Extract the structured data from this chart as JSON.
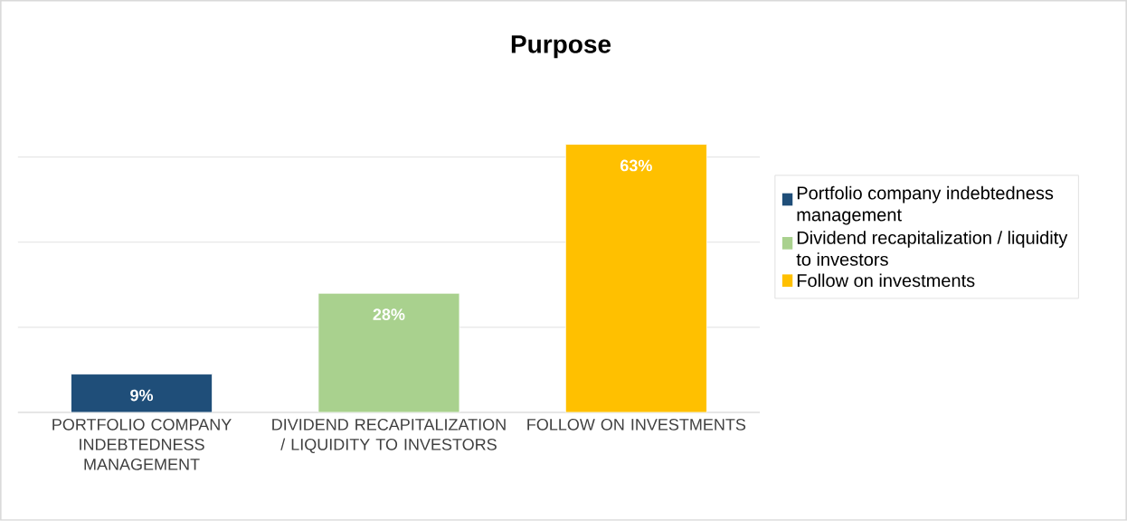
{
  "chart_data": {
    "type": "bar",
    "title": "Purpose",
    "categories": [
      "PORTFOLIO COMPANY INDEBTEDNESS MANAGEMENT",
      "DIVIDEND RECAPITALIZATION / LIQUIDITY TO INVESTORS",
      "FOLLOW ON INVESTMENTS"
    ],
    "series": [
      {
        "name": "Portfolio company indebtedness management",
        "color": "#1f4e79",
        "values": [
          9,
          null,
          null
        ],
        "value_labels": [
          "9%",
          null,
          null
        ]
      },
      {
        "name": "Dividend recapitalization / liquidity to investors",
        "color": "#a9d18e",
        "values": [
          null,
          28,
          null
        ],
        "value_labels": [
          null,
          "28%",
          null
        ]
      },
      {
        "name": "Follow on investments",
        "color": "#ffc000",
        "values": [
          null,
          null,
          63
        ],
        "value_labels": [
          null,
          null,
          "63%"
        ]
      }
    ],
    "tick_labels": "x",
    "grid": "y",
    "legend": "right"
  }
}
